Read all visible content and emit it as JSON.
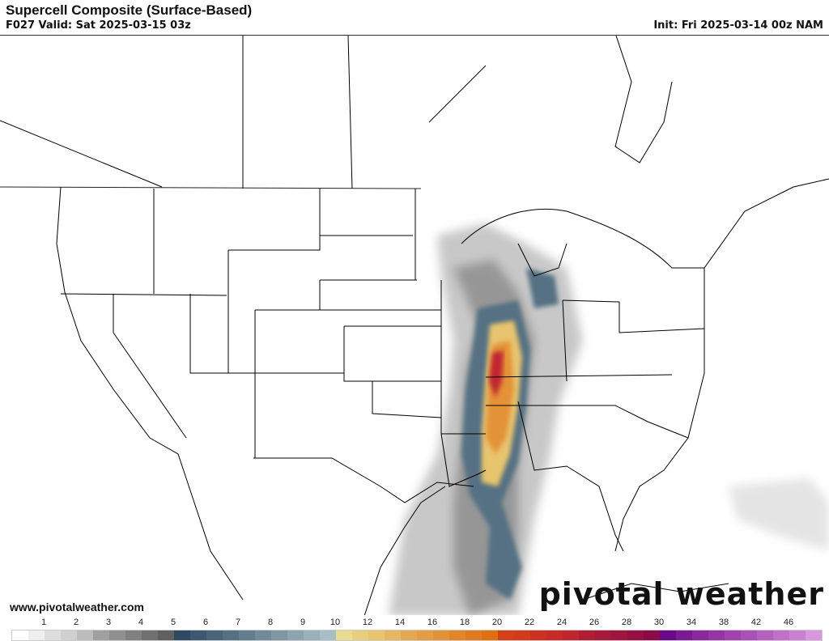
{
  "header": {
    "title": "Supercell Composite (Surface-Based)",
    "valid": "F027 Valid: Sat 2025-03-15 03z",
    "init": "Init: Fri 2025-03-14 00z NAM"
  },
  "watermark": {
    "url": "www.pivotalweather.com",
    "logo": "pivotal weather"
  },
  "colorbar": {
    "labels": [
      "1",
      "2",
      "3",
      "4",
      "5",
      "6",
      "7",
      "8",
      "9",
      "10",
      "12",
      "14",
      "16",
      "18",
      "20",
      "22",
      "24",
      "26",
      "28",
      "30",
      "34",
      "38",
      "42",
      "46"
    ],
    "colors": [
      "#ffffff",
      "#eeeeee",
      "#dddddd",
      "#d0d0d0",
      "#bcbcbc",
      "#a0a0a0",
      "#909090",
      "#808080",
      "#707070",
      "#606060",
      "#2f4b63",
      "#3d5870",
      "#4a6479",
      "#557183",
      "#637e8e",
      "#718b99",
      "#7f97a3",
      "#8ca4ae",
      "#99b1b9",
      "#a7bfc4",
      "#e8dc90",
      "#e8cf7d",
      "#e8c46e",
      "#e6b660",
      "#e4a852",
      "#e49d44",
      "#e49238",
      "#e4852a",
      "#e07a1e",
      "#de7010",
      "#d64016",
      "#d23a1c",
      "#cc3020",
      "#c82a28",
      "#c02530",
      "#b01e34",
      "#a8183a",
      "#a01440",
      "#961046",
      "#8c0a4a",
      "#6a0a8a",
      "#7a1a96",
      "#8a289e",
      "#9634a6",
      "#a242ae",
      "#aa50b6",
      "#b660c0",
      "#c070c8",
      "#cc80d2",
      "#d898de"
    ]
  }
}
